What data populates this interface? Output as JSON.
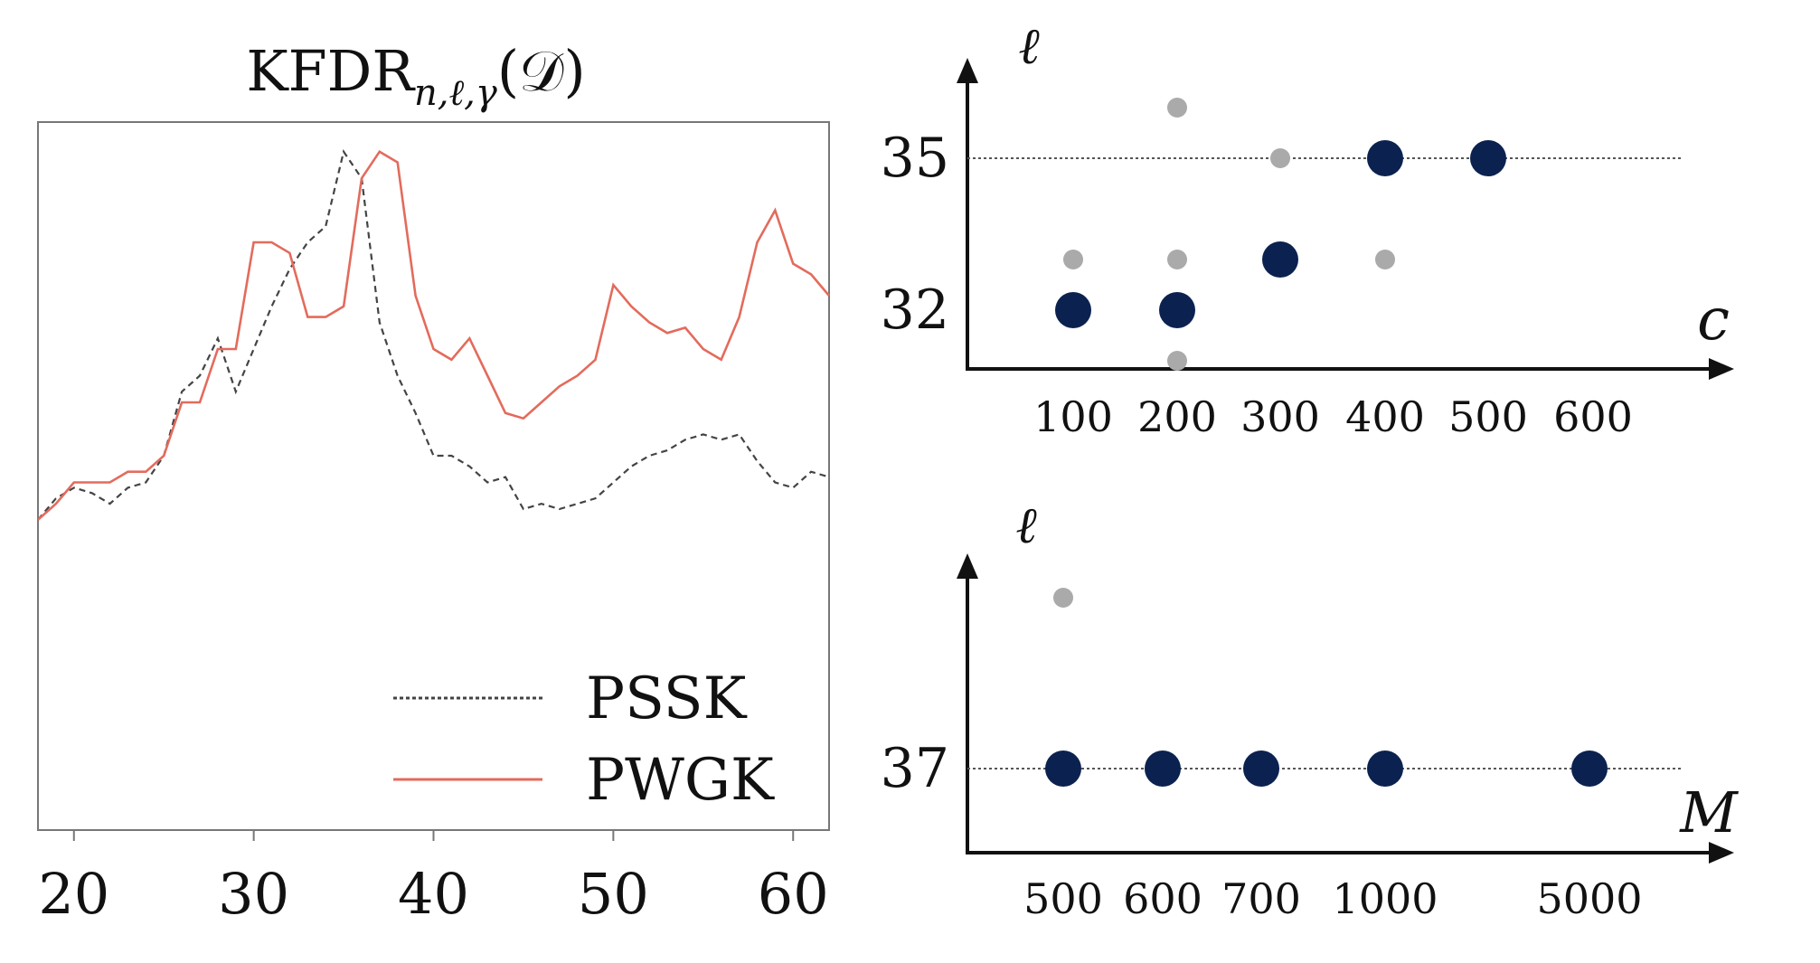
{
  "chart_data": [
    {
      "type": "line",
      "title": {
        "base": "KFDR",
        "subscript": "n,ℓ,γ",
        "arg": "(𝒟)"
      },
      "xlim": [
        18,
        62
      ],
      "ylim": [
        0,
        1
      ],
      "x_ticks": [
        "20",
        "30",
        "40",
        "50",
        "60"
      ],
      "legend_position": "bottom-right",
      "series": [
        {
          "name": "PSSK",
          "style": "dashed",
          "color": "#444444",
          "points": [
            [
              18,
              0.28
            ],
            [
              19,
              0.32
            ],
            [
              20,
              0.34
            ],
            [
              21,
              0.33
            ],
            [
              22,
              0.31
            ],
            [
              23,
              0.34
            ],
            [
              24,
              0.35
            ],
            [
              25,
              0.4
            ],
            [
              26,
              0.52
            ],
            [
              27,
              0.55
            ],
            [
              28,
              0.62
            ],
            [
              29,
              0.52
            ],
            [
              30,
              0.6
            ],
            [
              31,
              0.68
            ],
            [
              32,
              0.75
            ],
            [
              33,
              0.8
            ],
            [
              34,
              0.83
            ],
            [
              35,
              0.97
            ],
            [
              36,
              0.92
            ],
            [
              37,
              0.65
            ],
            [
              38,
              0.55
            ],
            [
              39,
              0.48
            ],
            [
              40,
              0.4
            ],
            [
              41,
              0.4
            ],
            [
              42,
              0.38
            ],
            [
              43,
              0.35
            ],
            [
              44,
              0.36
            ],
            [
              45,
              0.3
            ],
            [
              46,
              0.31
            ],
            [
              47,
              0.3
            ],
            [
              48,
              0.31
            ],
            [
              49,
              0.32
            ],
            [
              50,
              0.35
            ],
            [
              51,
              0.38
            ],
            [
              52,
              0.4
            ],
            [
              53,
              0.41
            ],
            [
              54,
              0.43
            ],
            [
              55,
              0.44
            ],
            [
              56,
              0.43
            ],
            [
              57,
              0.44
            ],
            [
              58,
              0.39
            ],
            [
              59,
              0.35
            ],
            [
              60,
              0.34
            ],
            [
              61,
              0.37
            ],
            [
              62,
              0.36
            ]
          ]
        },
        {
          "name": "PWGK",
          "style": "solid",
          "color": "#e36b5c",
          "points": [
            [
              18,
              0.28
            ],
            [
              19,
              0.31
            ],
            [
              20,
              0.35
            ],
            [
              21,
              0.35
            ],
            [
              22,
              0.35
            ],
            [
              23,
              0.37
            ],
            [
              24,
              0.37
            ],
            [
              25,
              0.4
            ],
            [
              26,
              0.5
            ],
            [
              27,
              0.5
            ],
            [
              28,
              0.6
            ],
            [
              29,
              0.6
            ],
            [
              30,
              0.8
            ],
            [
              31,
              0.8
            ],
            [
              32,
              0.78
            ],
            [
              33,
              0.66
            ],
            [
              34,
              0.66
            ],
            [
              35,
              0.68
            ],
            [
              36,
              0.92
            ],
            [
              37,
              0.97
            ],
            [
              38,
              0.95
            ],
            [
              39,
              0.7
            ],
            [
              40,
              0.6
            ],
            [
              41,
              0.58
            ],
            [
              42,
              0.62
            ],
            [
              43,
              0.55
            ],
            [
              44,
              0.48
            ],
            [
              45,
              0.47
            ],
            [
              46,
              0.5
            ],
            [
              47,
              0.53
            ],
            [
              48,
              0.55
            ],
            [
              49,
              0.58
            ],
            [
              50,
              0.72
            ],
            [
              51,
              0.68
            ],
            [
              52,
              0.65
            ],
            [
              53,
              0.63
            ],
            [
              54,
              0.64
            ],
            [
              55,
              0.6
            ],
            [
              56,
              0.58
            ],
            [
              57,
              0.66
            ],
            [
              58,
              0.8
            ],
            [
              59,
              0.86
            ],
            [
              60,
              0.76
            ],
            [
              61,
              0.74
            ],
            [
              62,
              0.7
            ]
          ]
        }
      ]
    },
    {
      "type": "scatter",
      "xlabel": "c",
      "ylabel": "ℓ",
      "x_categories": [
        "100",
        "200",
        "300",
        "400",
        "500",
        "600"
      ],
      "y_ticks": [
        "35",
        "32"
      ],
      "reference_line_y": 35,
      "highlight_color": "#0b2250",
      "other_color": "#aaaaaa",
      "points": [
        {
          "c": 100,
          "l": 33,
          "highlight": false
        },
        {
          "c": 100,
          "l": 32,
          "highlight": true
        },
        {
          "c": 200,
          "l": 36,
          "highlight": false
        },
        {
          "c": 200,
          "l": 33,
          "highlight": false
        },
        {
          "c": 200,
          "l": 32,
          "highlight": true
        },
        {
          "c": 200,
          "l": 31,
          "highlight": false
        },
        {
          "c": 300,
          "l": 35,
          "highlight": false
        },
        {
          "c": 300,
          "l": 33,
          "highlight": true
        },
        {
          "c": 400,
          "l": 35,
          "highlight": true
        },
        {
          "c": 400,
          "l": 33,
          "highlight": false
        },
        {
          "c": 500,
          "l": 35,
          "highlight": true
        }
      ]
    },
    {
      "type": "scatter",
      "xlabel": "M",
      "ylabel": "ℓ",
      "x_categories": [
        "500",
        "600",
        "700",
        "1000",
        "5000"
      ],
      "y_ticks": [
        "37"
      ],
      "reference_line_y": 37,
      "highlight_color": "#0b2250",
      "other_color": "#aaaaaa",
      "points": [
        {
          "M": "500",
          "l": 40,
          "highlight": false
        },
        {
          "M": "500",
          "l": 37,
          "highlight": true
        },
        {
          "M": "600",
          "l": 37,
          "highlight": true
        },
        {
          "M": "700",
          "l": 37,
          "highlight": true
        },
        {
          "M": "1000",
          "l": 37,
          "highlight": true
        },
        {
          "M": "5000",
          "l": 37,
          "highlight": true
        }
      ]
    }
  ]
}
